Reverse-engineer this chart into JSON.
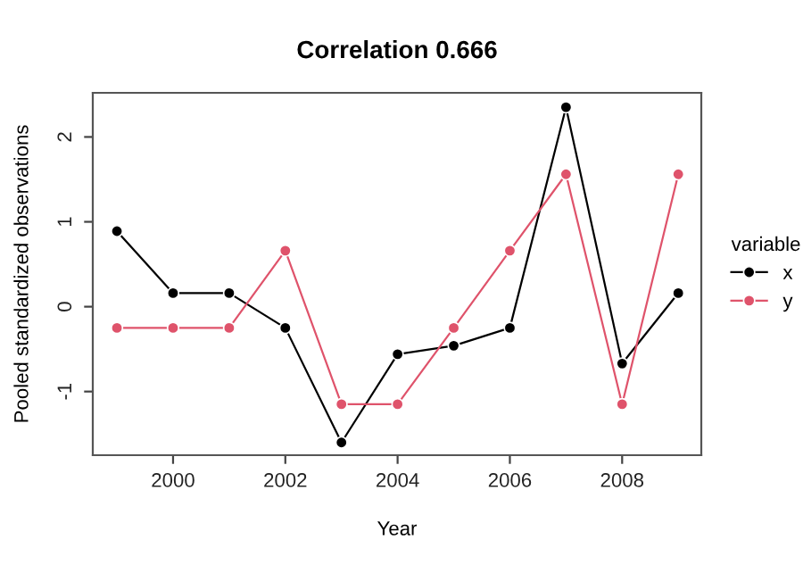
{
  "chart_data": {
    "type": "line",
    "title": "Correlation 0.666",
    "xlabel": "Year",
    "ylabel": "Pooled standardized observations",
    "legend_title": "variable",
    "x": [
      1999,
      2000,
      2001,
      2002,
      2003,
      2004,
      2005,
      2006,
      2007,
      2008,
      2009
    ],
    "series": [
      {
        "name": "x",
        "color": "#000000",
        "values": [
          0.89,
          0.16,
          0.16,
          -0.25,
          -1.6,
          -0.56,
          -0.46,
          -0.25,
          2.35,
          -0.67,
          0.16
        ]
      },
      {
        "name": "y",
        "color": "#df536b",
        "values": [
          -0.25,
          -0.25,
          -0.25,
          0.66,
          -1.15,
          -1.15,
          -0.25,
          0.66,
          1.56,
          -1.15,
          1.56
        ]
      }
    ],
    "xlim": [
      1998.57,
      2009.41
    ],
    "ylim": [
      -1.75,
      2.52
    ],
    "xticks": [
      2000,
      2002,
      2004,
      2006,
      2008
    ],
    "yticks": [
      -1,
      0,
      1,
      2
    ],
    "grid": false,
    "legend": "right",
    "marker": "circle",
    "line_style": "solid"
  }
}
